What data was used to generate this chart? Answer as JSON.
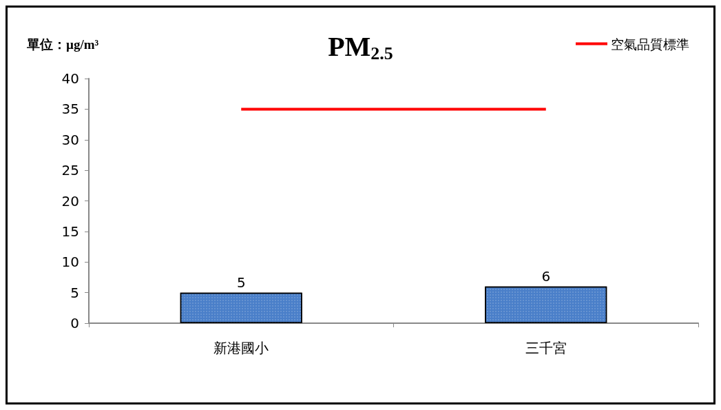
{
  "chart_data": {
    "type": "bar",
    "title": "PM$_{2.5}$",
    "ylabel": "單位：µg/m³",
    "categories": [
      "新港國小",
      "三千宮"
    ],
    "series": [
      {
        "color": "#4a7fc9",
        "values": [
          5,
          6
        ],
        "value_labels": [
          "5",
          "6"
        ]
      },
      {
        "type": "line",
        "name": "空氣品質標準",
        "color": "#ff0000",
        "values": [
          35,
          35
        ]
      }
    ],
    "ylim": [
      0,
      40
    ],
    "yticks": [
      0,
      5,
      10,
      15,
      20,
      25,
      30,
      35,
      40
    ],
    "grid": false,
    "legend": "top right",
    "marker": "none"
  }
}
